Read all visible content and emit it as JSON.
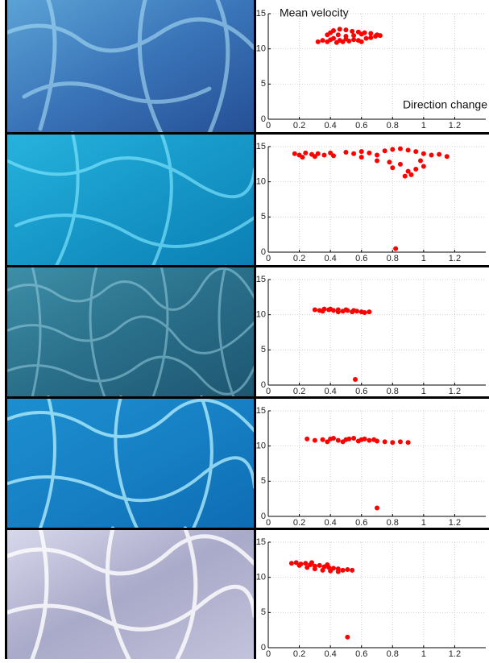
{
  "chart_data": [
    {
      "type": "scatter",
      "ylabel": "Mean velocity",
      "xlabel": "Direction change",
      "color": "#ff0000",
      "xlim": [
        0,
        1.4
      ],
      "ylim": [
        0,
        15
      ],
      "xticks": [
        0,
        0.2,
        0.4,
        0.6,
        0.8,
        1,
        1.2
      ],
      "yticks": [
        0,
        5,
        10,
        15
      ],
      "grid": true,
      "x": [
        0.32,
        0.35,
        0.38,
        0.4,
        0.42,
        0.44,
        0.46,
        0.48,
        0.5,
        0.52,
        0.55,
        0.58,
        0.6,
        0.63,
        0.66,
        0.69,
        0.72,
        0.38,
        0.42,
        0.46,
        0.5,
        0.54,
        0.58,
        0.62,
        0.66,
        0.7,
        0.4,
        0.45,
        0.5,
        0.55,
        0.6
      ],
      "values": [
        11.0,
        11.2,
        11.0,
        11.3,
        11.5,
        10.9,
        11.2,
        11.0,
        11.4,
        11.1,
        11.3,
        11.2,
        11.0,
        11.5,
        11.6,
        11.8,
        11.9,
        12.0,
        12.6,
        12.8,
        12.7,
        12.5,
        12.4,
        12.3,
        12.2,
        12.0,
        12.3,
        12.0,
        11.8,
        11.9,
        12.1
      ]
    },
    {
      "type": "scatter",
      "color": "#ff0000",
      "xlim": [
        0,
        1.4
      ],
      "ylim": [
        0,
        15
      ],
      "xticks": [
        0,
        0.2,
        0.4,
        0.6,
        0.8,
        1,
        1.2
      ],
      "yticks": [
        0,
        5,
        10,
        15
      ],
      "grid": true,
      "x": [
        0.17,
        0.2,
        0.24,
        0.28,
        0.32,
        0.36,
        0.4,
        0.42,
        0.22,
        0.3,
        0.5,
        0.55,
        0.6,
        0.65,
        0.7,
        0.75,
        0.8,
        0.85,
        0.9,
        0.95,
        1.0,
        1.05,
        1.1,
        1.15,
        0.85,
        0.9,
        0.95,
        1.0,
        0.8,
        0.88,
        0.92,
        0.7,
        0.6,
        0.78,
        0.98,
        0.82
      ],
      "values": [
        14.0,
        13.8,
        14.1,
        13.9,
        14.0,
        13.8,
        14.1,
        13.7,
        13.5,
        13.6,
        14.2,
        14.0,
        14.3,
        14.1,
        13.8,
        14.4,
        14.6,
        14.7,
        14.5,
        14.3,
        14.0,
        13.8,
        13.9,
        13.6,
        12.5,
        11.5,
        11.8,
        12.2,
        12.0,
        10.8,
        11.0,
        13.0,
        13.5,
        12.8,
        13.0,
        0.5
      ]
    },
    {
      "type": "scatter",
      "color": "#ff0000",
      "xlim": [
        0,
        1.4
      ],
      "ylim": [
        0,
        15
      ],
      "xticks": [
        0,
        0.2,
        0.4,
        0.6,
        0.8,
        1,
        1.2
      ],
      "yticks": [
        0,
        5,
        10,
        15
      ],
      "grid": true,
      "x": [
        0.3,
        0.33,
        0.36,
        0.39,
        0.42,
        0.45,
        0.48,
        0.51,
        0.54,
        0.57,
        0.6,
        0.62,
        0.65,
        0.35,
        0.4,
        0.45,
        0.5,
        0.55,
        0.56
      ],
      "values": [
        10.7,
        10.6,
        10.8,
        10.7,
        10.6,
        10.7,
        10.5,
        10.6,
        10.4,
        10.5,
        10.4,
        10.3,
        10.4,
        10.5,
        10.8,
        10.4,
        10.7,
        10.6,
        0.8
      ]
    },
    {
      "type": "scatter",
      "color": "#ff0000",
      "xlim": [
        0,
        1.4
      ],
      "ylim": [
        0,
        15
      ],
      "xticks": [
        0,
        0.2,
        0.4,
        0.6,
        0.8,
        1,
        1.2
      ],
      "yticks": [
        0,
        5,
        10,
        15
      ],
      "grid": true,
      "x": [
        0.25,
        0.3,
        0.35,
        0.4,
        0.45,
        0.5,
        0.55,
        0.6,
        0.65,
        0.7,
        0.75,
        0.8,
        0.85,
        0.9,
        0.38,
        0.48,
        0.58,
        0.68,
        0.42,
        0.52,
        0.62,
        0.7
      ],
      "values": [
        11.0,
        10.8,
        10.9,
        11.0,
        10.8,
        10.9,
        11.1,
        10.9,
        10.8,
        10.7,
        10.6,
        10.5,
        10.6,
        10.5,
        10.6,
        10.6,
        10.7,
        10.9,
        11.1,
        11.0,
        11.0,
        1.2
      ]
    },
    {
      "type": "scatter",
      "color": "#ff0000",
      "xlim": [
        0,
        1.4
      ],
      "ylim": [
        0,
        15
      ],
      "xticks": [
        0,
        0.2,
        0.4,
        0.6,
        0.8,
        1,
        1.2
      ],
      "yticks": [
        0,
        5,
        10,
        15
      ],
      "grid": true,
      "x": [
        0.15,
        0.18,
        0.21,
        0.24,
        0.27,
        0.3,
        0.33,
        0.36,
        0.39,
        0.42,
        0.45,
        0.48,
        0.51,
        0.54,
        0.2,
        0.25,
        0.3,
        0.35,
        0.4,
        0.45,
        0.28,
        0.38,
        0.51
      ],
      "values": [
        12.0,
        12.1,
        11.9,
        12.0,
        11.8,
        11.6,
        11.7,
        11.5,
        11.4,
        11.3,
        11.2,
        11.0,
        11.1,
        11.0,
        11.7,
        11.4,
        11.2,
        11.0,
        10.9,
        10.8,
        12.1,
        11.8,
        1.5
      ]
    }
  ]
}
